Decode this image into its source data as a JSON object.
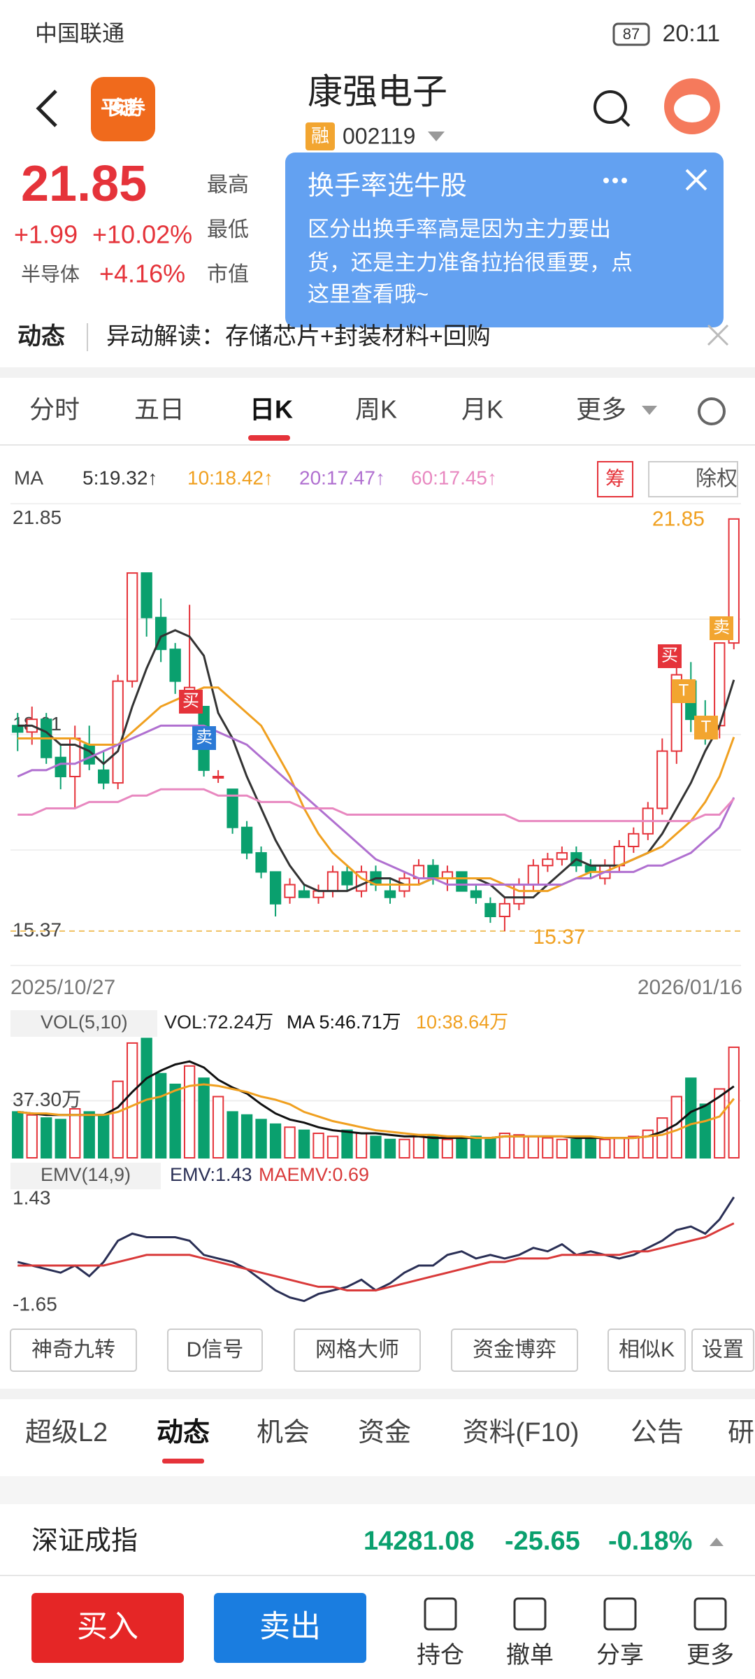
{
  "status_bar": {
    "carrier": "中国联通",
    "battery": "87",
    "time": "20:11"
  },
  "header": {
    "logo": "平安证券",
    "title": "康强电子",
    "badge": "融",
    "code": "002119"
  },
  "quote": {
    "price": "21.85",
    "change": "+1.99",
    "change_pct": "+10.02%",
    "sector": "半导体",
    "sector_pct": "+4.16%",
    "labels": [
      "最高",
      "最低",
      "市值"
    ]
  },
  "popup": {
    "title": "换手率选牛股",
    "body": [
      "区分出换手率高是因为主力要出",
      "货，还是主力准备拉抬很重要，点",
      "这里查看哦~"
    ]
  },
  "news": {
    "label": "动态",
    "text": "异动解读：存储芯片+封装材料+回购"
  },
  "period_tabs": [
    "分时",
    "五日",
    "日K",
    "周K",
    "月K",
    "更多"
  ],
  "chart_data": [
    {
      "type": "candlestick",
      "legend_label": "MA",
      "buttons": [
        "筹",
        "除权"
      ],
      "x_start": "2025/10/27",
      "x_end": "2026/01/16",
      "ylim": [
        14.83,
        22.09
      ],
      "yticks": [
        21.85,
        18.61,
        15.37
      ],
      "high_label": "21.85",
      "low_label": "15.37",
      "annotations": [
        "买",
        "卖",
        "买",
        "T",
        "T",
        "卖"
      ],
      "up_color": "#e5333a",
      "down_color": "#0aa06e",
      "candles": [
        [
          18.6,
          18.8,
          18.2,
          18.5
        ],
        [
          18.5,
          18.9,
          18.3,
          18.7
        ],
        [
          18.7,
          18.8,
          18.0,
          18.1
        ],
        [
          18.1,
          18.3,
          17.6,
          17.8
        ],
        [
          17.8,
          18.6,
          17.3,
          18.4
        ],
        [
          18.3,
          18.6,
          17.9,
          18.0
        ],
        [
          17.9,
          18.2,
          17.6,
          17.7
        ],
        [
          17.7,
          19.4,
          17.6,
          19.3
        ],
        [
          19.3,
          21.0,
          19.2,
          21.0
        ],
        [
          21.0,
          21.0,
          20.0,
          20.3
        ],
        [
          20.3,
          20.6,
          19.6,
          19.8
        ],
        [
          19.8,
          19.9,
          19.1,
          19.3
        ],
        [
          19.1,
          20.5,
          18.8,
          19.2
        ],
        [
          18.9,
          18.9,
          17.8,
          17.9
        ],
        [
          17.8,
          17.9,
          17.7,
          17.8
        ],
        [
          17.6,
          17.6,
          16.9,
          17.0
        ],
        [
          17.0,
          17.1,
          16.5,
          16.6
        ],
        [
          16.6,
          16.7,
          16.2,
          16.3
        ],
        [
          16.3,
          16.3,
          15.6,
          15.8
        ],
        [
          15.9,
          16.2,
          15.8,
          16.1
        ],
        [
          16.0,
          16.1,
          15.9,
          15.9
        ],
        [
          15.9,
          16.1,
          15.8,
          16.0
        ],
        [
          16.0,
          16.4,
          15.9,
          16.3
        ],
        [
          16.3,
          16.4,
          16.0,
          16.1
        ],
        [
          16.0,
          16.4,
          15.9,
          16.3
        ],
        [
          16.3,
          16.4,
          16.0,
          16.1
        ],
        [
          16.0,
          16.2,
          15.8,
          15.9
        ],
        [
          16.0,
          16.3,
          15.9,
          16.2
        ],
        [
          16.2,
          16.5,
          16.1,
          16.4
        ],
        [
          16.4,
          16.5,
          16.1,
          16.2
        ],
        [
          16.2,
          16.4,
          16.0,
          16.3
        ],
        [
          16.3,
          16.3,
          16.0,
          16.0
        ],
        [
          16.0,
          16.1,
          15.8,
          15.9
        ],
        [
          15.8,
          15.9,
          15.5,
          15.6
        ],
        [
          15.6,
          15.9,
          15.37,
          15.8
        ],
        [
          15.8,
          16.2,
          15.7,
          16.1
        ],
        [
          16.1,
          16.5,
          16.0,
          16.4
        ],
        [
          16.4,
          16.6,
          16.3,
          16.5
        ],
        [
          16.5,
          16.7,
          16.4,
          16.6
        ],
        [
          16.6,
          16.7,
          16.3,
          16.4
        ],
        [
          16.4,
          16.5,
          16.2,
          16.3
        ],
        [
          16.2,
          16.5,
          16.1,
          16.4
        ],
        [
          16.4,
          16.8,
          16.3,
          16.7
        ],
        [
          16.7,
          17.0,
          16.6,
          16.9
        ],
        [
          16.9,
          17.4,
          16.8,
          17.3
        ],
        [
          17.3,
          18.4,
          17.2,
          18.2
        ],
        [
          18.2,
          19.8,
          18.0,
          19.4
        ],
        [
          19.3,
          19.6,
          18.5,
          18.7
        ],
        [
          18.7,
          19.0,
          18.3,
          18.6
        ],
        [
          18.6,
          19.9,
          18.4,
          19.9
        ],
        [
          19.9,
          21.85,
          19.8,
          21.85
        ]
      ],
      "series": [
        {
          "name": "5:19.32↑",
          "color": "#333333",
          "values": [
            18.6,
            18.6,
            18.5,
            18.3,
            18.3,
            18.2,
            18.0,
            18.2,
            18.9,
            19.5,
            20.0,
            20.1,
            20.0,
            19.7,
            18.8,
            18.4,
            17.8,
            17.3,
            16.8,
            16.4,
            16.1,
            16.0,
            16.0,
            16.0,
            16.1,
            16.2,
            16.2,
            16.1,
            16.1,
            16.2,
            16.2,
            16.2,
            16.2,
            16.1,
            15.9,
            15.9,
            15.9,
            16.1,
            16.3,
            16.5,
            16.4,
            16.4,
            16.4,
            16.5,
            16.6,
            16.9,
            17.3,
            17.7,
            18.2,
            18.6,
            19.32
          ]
        },
        {
          "name": "10:18.42↑",
          "color": "#f0a020",
          "values": [
            18.4,
            18.4,
            18.4,
            18.4,
            18.4,
            18.3,
            18.3,
            18.3,
            18.5,
            18.7,
            18.9,
            19.0,
            19.1,
            19.2,
            19.2,
            19.0,
            18.8,
            18.6,
            18.2,
            17.8,
            17.3,
            16.9,
            16.6,
            16.4,
            16.2,
            16.1,
            16.1,
            16.1,
            16.1,
            16.2,
            16.2,
            16.2,
            16.2,
            16.2,
            16.1,
            16.0,
            16.0,
            16.0,
            16.1,
            16.2,
            16.3,
            16.3,
            16.4,
            16.5,
            16.6,
            16.7,
            16.9,
            17.1,
            17.4,
            17.8,
            18.42
          ]
        },
        {
          "name": "20:17.47↑",
          "color": "#b070d0",
          "values": [
            17.8,
            17.9,
            17.9,
            18.0,
            18.0,
            18.1,
            18.2,
            18.3,
            18.4,
            18.5,
            18.6,
            18.6,
            18.6,
            18.6,
            18.5,
            18.4,
            18.3,
            18.1,
            17.9,
            17.7,
            17.5,
            17.3,
            17.1,
            16.9,
            16.7,
            16.5,
            16.4,
            16.3,
            16.2,
            16.2,
            16.1,
            16.1,
            16.1,
            16.1,
            16.1,
            16.1,
            16.1,
            16.1,
            16.1,
            16.2,
            16.2,
            16.3,
            16.3,
            16.3,
            16.4,
            16.4,
            16.5,
            16.6,
            16.8,
            17.0,
            17.47
          ]
        },
        {
          "name": "60:17.45↑",
          "color": "#e888c0",
          "values": [
            17.2,
            17.2,
            17.3,
            17.3,
            17.3,
            17.4,
            17.4,
            17.4,
            17.5,
            17.5,
            17.6,
            17.6,
            17.6,
            17.6,
            17.5,
            17.5,
            17.5,
            17.4,
            17.4,
            17.4,
            17.3,
            17.3,
            17.3,
            17.2,
            17.2,
            17.2,
            17.2,
            17.2,
            17.2,
            17.2,
            17.2,
            17.2,
            17.2,
            17.2,
            17.2,
            17.1,
            17.1,
            17.1,
            17.1,
            17.1,
            17.1,
            17.1,
            17.1,
            17.1,
            17.1,
            17.1,
            17.1,
            17.1,
            17.2,
            17.2,
            17.45
          ]
        }
      ]
    },
    {
      "type": "bar",
      "legend_label": "VOL(5,10)",
      "ylim": [
        0,
        80
      ],
      "yticks": [
        {
          "value": 37.3,
          "label": "37.30万"
        }
      ],
      "series": [
        {
          "name": "VOL:72.24万",
          "color": "#222222",
          "values": [
            30,
            28,
            26,
            25,
            32,
            30,
            28,
            50,
            75,
            78,
            55,
            48,
            60,
            52,
            40,
            30,
            28,
            25,
            22,
            20,
            18,
            16,
            14,
            18,
            16,
            14,
            12,
            12,
            15,
            14,
            12,
            12,
            14,
            13,
            16,
            15,
            14,
            13,
            12,
            12,
            13,
            12,
            13,
            14,
            18,
            26,
            40,
            52,
            35,
            45,
            72.24
          ]
        },
        {
          "name": "MA 5:46.71万",
          "color": "#111111",
          "values": [
            30,
            29,
            28,
            28,
            28,
            28,
            28,
            33,
            43,
            52,
            57,
            61,
            63,
            59,
            51,
            46,
            42,
            35,
            29,
            25,
            23,
            20,
            18,
            17,
            16,
            16,
            15,
            14,
            14,
            13,
            13,
            13,
            13,
            13,
            14,
            14,
            14,
            14,
            14,
            13,
            13,
            13,
            13,
            13,
            14,
            17,
            22,
            30,
            34,
            40,
            46.71
          ]
        },
        {
          "name": "10:38.64万",
          "color": "#f0a020",
          "values": [
            30,
            29,
            29,
            28,
            28,
            28,
            28,
            30,
            34,
            38,
            40,
            44,
            47,
            48,
            47,
            45,
            43,
            40,
            38,
            35,
            30,
            27,
            24,
            22,
            20,
            18,
            17,
            16,
            15,
            15,
            14,
            14,
            13,
            13,
            14,
            14,
            14,
            14,
            14,
            14,
            14,
            13,
            13,
            13,
            14,
            15,
            18,
            22,
            24,
            27,
            38.64
          ]
        }
      ]
    },
    {
      "type": "line",
      "legend_label": "EMV(14,9)",
      "ylim": [
        -1.9,
        1.65
      ],
      "yticks": [
        1.43,
        -1.65
      ],
      "series": [
        {
          "name": "EMV:1.43",
          "color": "#2a2f55",
          "values": [
            -0.4,
            -0.5,
            -0.6,
            -0.7,
            -0.5,
            -0.8,
            -0.4,
            0.2,
            0.4,
            0.3,
            0.3,
            0.3,
            0.2,
            -0.2,
            -0.3,
            -0.4,
            -0.6,
            -0.9,
            -1.2,
            -1.4,
            -1.5,
            -1.3,
            -1.2,
            -1.1,
            -0.9,
            -1.2,
            -1.0,
            -0.7,
            -0.5,
            -0.5,
            -0.2,
            -0.1,
            -0.3,
            -0.2,
            -0.3,
            -0.2,
            0.0,
            -0.1,
            0.1,
            -0.2,
            -0.1,
            -0.2,
            -0.3,
            -0.2,
            0.0,
            0.2,
            0.5,
            0.6,
            0.4,
            0.8,
            1.43
          ]
        },
        {
          "name": "MAEMV:0.69",
          "color": "#d93a3a",
          "values": [
            -0.5,
            -0.5,
            -0.5,
            -0.5,
            -0.5,
            -0.5,
            -0.5,
            -0.4,
            -0.3,
            -0.2,
            -0.2,
            -0.2,
            -0.2,
            -0.3,
            -0.4,
            -0.5,
            -0.6,
            -0.7,
            -0.8,
            -0.9,
            -1.0,
            -1.1,
            -1.1,
            -1.2,
            -1.2,
            -1.2,
            -1.1,
            -1.0,
            -0.9,
            -0.8,
            -0.7,
            -0.6,
            -0.5,
            -0.4,
            -0.4,
            -0.3,
            -0.3,
            -0.3,
            -0.2,
            -0.2,
            -0.2,
            -0.2,
            -0.2,
            -0.1,
            -0.1,
            0.0,
            0.1,
            0.2,
            0.3,
            0.5,
            0.69
          ]
        }
      ]
    }
  ],
  "tool_buttons": [
    "神奇九转",
    "D信号",
    "网格大师",
    "资金博弈",
    "相似K",
    "设置"
  ],
  "section_tabs": [
    "超级L2",
    "动态",
    "机会",
    "资金",
    "资料(F10)",
    "公告",
    "研"
  ],
  "index": {
    "name": "深证成指",
    "value": "14281.08",
    "change": "-25.65",
    "pct": "-0.18%"
  },
  "actions": {
    "buy": "买入",
    "sell": "卖出",
    "icons": [
      "持仓",
      "撤单",
      "分享",
      "更多"
    ]
  }
}
